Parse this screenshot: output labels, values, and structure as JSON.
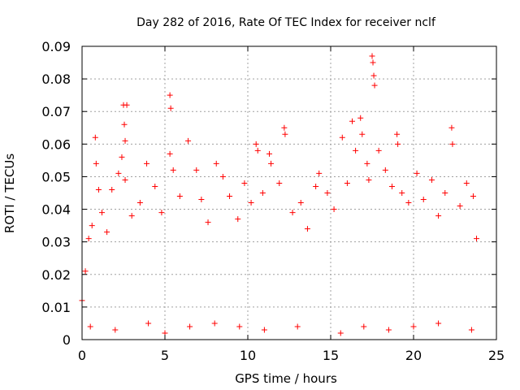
{
  "chart_data": {
    "type": "scatter",
    "title": "Day 282 of 2016, Rate Of TEC Index for receiver nclf",
    "xlabel": "GPS time / hours",
    "ylabel": "ROTI / TECUs",
    "xlim": [
      0,
      25
    ],
    "ylim": [
      0,
      0.09
    ],
    "x_ticks": [
      "0",
      "5",
      "10",
      "15",
      "20",
      "25"
    ],
    "y_ticks": [
      "0",
      "0.01",
      "0.02",
      "0.03",
      "0.04",
      "0.05",
      "0.06",
      "0.07",
      "0.08",
      "0.09"
    ],
    "grid": true,
    "marker": "+",
    "series": [
      {
        "name": "ROTI",
        "color": "#ff0000",
        "points": [
          [
            0.0,
            0.012
          ],
          [
            0.2,
            0.021
          ],
          [
            0.4,
            0.031
          ],
          [
            0.6,
            0.035
          ],
          [
            0.8,
            0.062
          ],
          [
            0.85,
            0.054
          ],
          [
            1.0,
            0.046
          ],
          [
            1.2,
            0.039
          ],
          [
            1.5,
            0.033
          ],
          [
            1.8,
            0.046
          ],
          [
            2.2,
            0.051
          ],
          [
            2.5,
            0.072
          ],
          [
            2.55,
            0.066
          ],
          [
            2.6,
            0.061
          ],
          [
            2.7,
            0.072
          ],
          [
            2.4,
            0.056
          ],
          [
            2.6,
            0.049
          ],
          [
            3.0,
            0.038
          ],
          [
            3.5,
            0.042
          ],
          [
            3.9,
            0.054
          ],
          [
            4.4,
            0.047
          ],
          [
            4.8,
            0.039
          ],
          [
            5.3,
            0.075
          ],
          [
            5.35,
            0.071
          ],
          [
            5.3,
            0.057
          ],
          [
            5.5,
            0.052
          ],
          [
            5.9,
            0.044
          ],
          [
            6.4,
            0.061
          ],
          [
            6.9,
            0.052
          ],
          [
            7.2,
            0.043
          ],
          [
            7.6,
            0.036
          ],
          [
            8.1,
            0.054
          ],
          [
            8.5,
            0.05
          ],
          [
            8.9,
            0.044
          ],
          [
            9.4,
            0.037
          ],
          [
            9.8,
            0.048
          ],
          [
            10.2,
            0.042
          ],
          [
            10.5,
            0.06
          ],
          [
            10.6,
            0.058
          ],
          [
            10.9,
            0.045
          ],
          [
            11.3,
            0.057
          ],
          [
            11.4,
            0.054
          ],
          [
            11.9,
            0.048
          ],
          [
            12.2,
            0.065
          ],
          [
            12.25,
            0.063
          ],
          [
            12.7,
            0.039
          ],
          [
            13.2,
            0.042
          ],
          [
            13.6,
            0.034
          ],
          [
            14.1,
            0.047
          ],
          [
            14.3,
            0.051
          ],
          [
            14.8,
            0.045
          ],
          [
            15.2,
            0.04
          ],
          [
            15.7,
            0.062
          ],
          [
            16.0,
            0.048
          ],
          [
            16.3,
            0.067
          ],
          [
            16.5,
            0.058
          ],
          [
            16.8,
            0.068
          ],
          [
            16.9,
            0.063
          ],
          [
            17.2,
            0.054
          ],
          [
            17.5,
            0.087
          ],
          [
            17.55,
            0.085
          ],
          [
            17.6,
            0.081
          ],
          [
            17.65,
            0.078
          ],
          [
            17.3,
            0.049
          ],
          [
            17.9,
            0.058
          ],
          [
            18.3,
            0.052
          ],
          [
            18.7,
            0.047
          ],
          [
            19.0,
            0.063
          ],
          [
            19.05,
            0.06
          ],
          [
            19.3,
            0.045
          ],
          [
            19.7,
            0.042
          ],
          [
            20.2,
            0.051
          ],
          [
            20.6,
            0.043
          ],
          [
            21.1,
            0.049
          ],
          [
            21.5,
            0.038
          ],
          [
            21.9,
            0.045
          ],
          [
            22.3,
            0.065
          ],
          [
            22.35,
            0.06
          ],
          [
            22.8,
            0.041
          ],
          [
            23.2,
            0.048
          ],
          [
            23.6,
            0.044
          ],
          [
            23.8,
            0.031
          ],
          [
            0.5,
            0.004
          ],
          [
            2.0,
            0.003
          ],
          [
            4.0,
            0.005
          ],
          [
            5.0,
            0.002
          ],
          [
            6.5,
            0.004
          ],
          [
            8.0,
            0.005
          ],
          [
            9.5,
            0.004
          ],
          [
            11.0,
            0.003
          ],
          [
            13.0,
            0.004
          ],
          [
            15.6,
            0.002
          ],
          [
            17.0,
            0.004
          ],
          [
            18.5,
            0.003
          ],
          [
            20.0,
            0.004
          ],
          [
            21.5,
            0.005
          ],
          [
            23.5,
            0.003
          ]
        ]
      }
    ]
  }
}
